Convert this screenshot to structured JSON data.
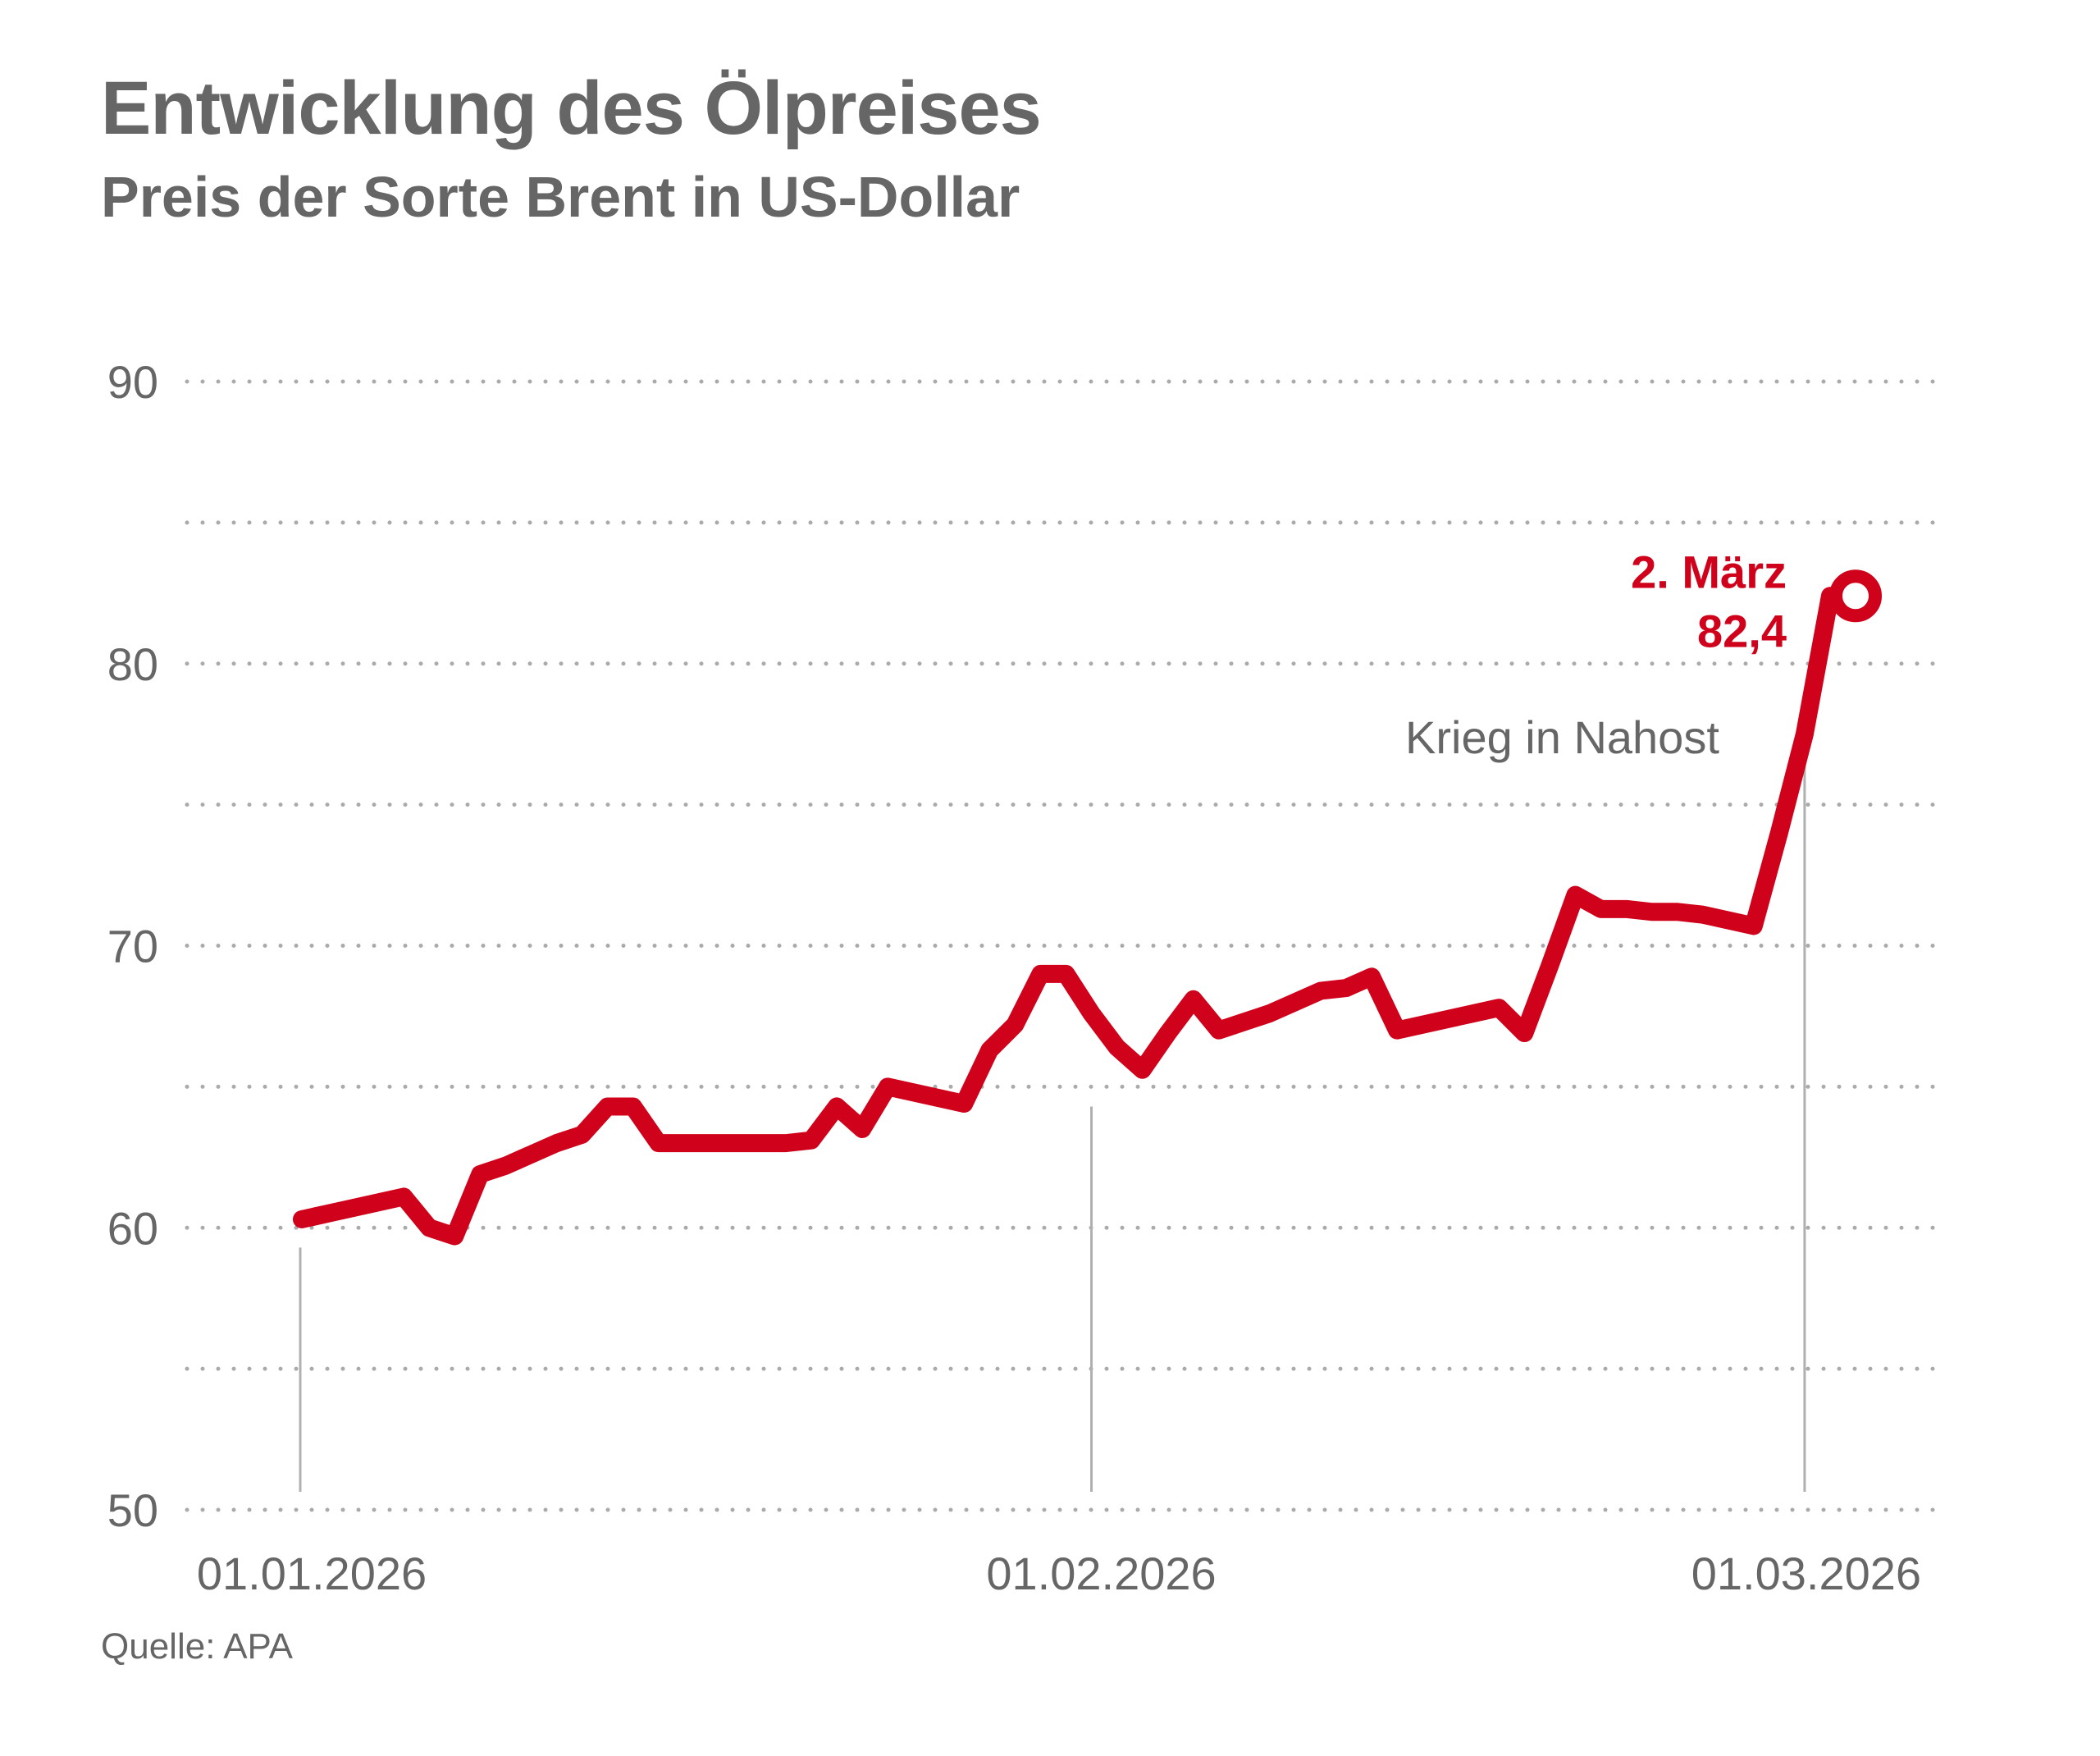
{
  "title": "Entwicklung des Ölpreises",
  "subtitle": "Preis der Sorte Brent in US-Dollar",
  "source": "Quelle: APA",
  "colors": {
    "line": "#d0021b",
    "grid": "#aaaaaa",
    "text": "#666666",
    "marker_lines": "#b0b0b0"
  },
  "chart_data": {
    "type": "line",
    "title": "Entwicklung des Ölpreises",
    "subtitle": "Preis der Sorte Brent in US-Dollar",
    "xlabel": "",
    "ylabel": "",
    "x_unit": "days since 01.01.2026",
    "xlim": [
      -1,
      62
    ],
    "ylim": [
      50,
      90
    ],
    "y_ticks": [
      50,
      60,
      70,
      80,
      90
    ],
    "y_tick_labels": [
      "50",
      "60",
      "70",
      "80",
      "90"
    ],
    "y_minor_gridlines": [
      55,
      65,
      75,
      85
    ],
    "grid": "dotted horizontal",
    "x_ticks": [
      {
        "x": 0,
        "label": "01.01.2026"
      },
      {
        "x": 31,
        "label": "01.02.2026"
      },
      {
        "x": 59,
        "label": "01.03.2026"
      }
    ],
    "series": [
      {
        "name": "Brent",
        "x": [
          0,
          1,
          2,
          3,
          4,
          5,
          6,
          7,
          8,
          9,
          10,
          11,
          12,
          13,
          14,
          15,
          16,
          17,
          18,
          19,
          20,
          21,
          22,
          23,
          24,
          25,
          26,
          27,
          28,
          29,
          30,
          31,
          32,
          33,
          34,
          35,
          36,
          37,
          38,
          39,
          40,
          41,
          42,
          43,
          44,
          45,
          46,
          47,
          48,
          49,
          50,
          51,
          52,
          53,
          54,
          55,
          56,
          57,
          58,
          59,
          60,
          61
        ],
        "values": [
          60.3,
          60.5,
          60.7,
          60.9,
          61.1,
          60.0,
          59.7,
          61.9,
          62.2,
          62.6,
          63.0,
          63.3,
          64.3,
          64.3,
          63.0,
          63.0,
          63.0,
          63.0,
          63.0,
          63.0,
          63.1,
          64.3,
          63.5,
          65.0,
          64.8,
          64.6,
          64.4,
          66.3,
          67.2,
          69.0,
          69.0,
          67.6,
          66.4,
          65.6,
          66.9,
          68.1,
          67.0,
          67.3,
          67.6,
          68.0,
          68.4,
          68.5,
          68.9,
          67.0,
          67.2,
          67.4,
          67.6,
          67.8,
          66.9,
          69.3,
          71.8,
          71.3,
          71.3,
          71.2,
          71.2,
          71.1,
          70.9,
          70.7,
          74.0,
          77.5,
          82.4,
          82.4
        ],
        "color": "#d0021b"
      }
    ],
    "annotations": [
      {
        "x": 61,
        "y": 82.4,
        "label_date": "2. März",
        "label_value": "82,4",
        "type": "highlight-point"
      },
      {
        "x": 59,
        "y": 77,
        "label": "Krieg in Nahost",
        "type": "event-line"
      }
    ],
    "reference_lines": [
      {
        "x": 0,
        "y_top": 59.3
      },
      {
        "x": 31,
        "y_top": 64.3
      },
      {
        "x": 59,
        "y_top": 76.8
      }
    ]
  }
}
